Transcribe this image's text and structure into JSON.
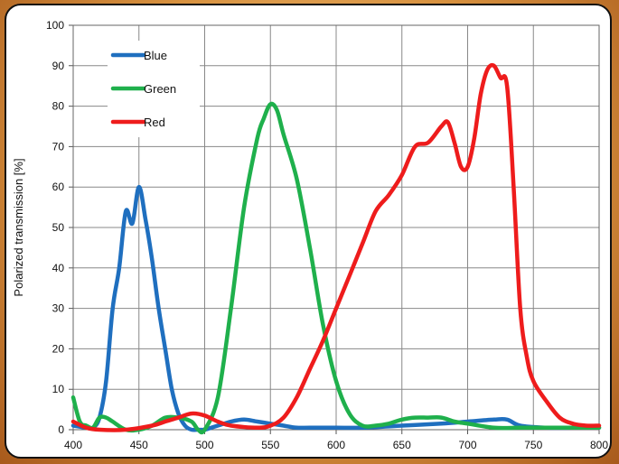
{
  "chart_data": {
    "type": "line",
    "xlabel": "",
    "ylabel": "Polarized transmission [%]",
    "xlim": [
      400,
      800
    ],
    "ylim": [
      0,
      100
    ],
    "xticks": [
      "400",
      "450",
      "500",
      "550",
      "600",
      "650",
      "700",
      "750",
      "800"
    ],
    "yticks": [
      "0",
      "10",
      "20",
      "30",
      "40",
      "50",
      "60",
      "70",
      "80",
      "90",
      "100"
    ],
    "grid": true,
    "legend_position": "top-left",
    "series": [
      {
        "name": "Blue",
        "color": "#1f6fbf",
        "x": [
          400,
          410,
          415,
          420,
          425,
          430,
          435,
          440,
          445,
          450,
          455,
          460,
          465,
          470,
          475,
          480,
          485,
          490,
          495,
          500,
          505,
          510,
          520,
          530,
          540,
          550,
          560,
          570,
          580,
          600,
          620,
          650,
          680,
          700,
          720,
          730,
          740,
          760,
          780,
          800
        ],
        "y": [
          1,
          0.5,
          0.5,
          3,
          12,
          30,
          40,
          54,
          51,
          60,
          52,
          42,
          30,
          20,
          10,
          4,
          1,
          0,
          0,
          0,
          0.5,
          1,
          2,
          2.5,
          2,
          1.5,
          1,
          0.5,
          0.5,
          0.5,
          0.5,
          1,
          1.5,
          2,
          2.5,
          2.5,
          1,
          0.5,
          0.5,
          0.5
        ]
      },
      {
        "name": "Green",
        "color": "#1fb04c",
        "x": [
          400,
          405,
          410,
          415,
          420,
          425,
          430,
          440,
          450,
          460,
          470,
          480,
          490,
          495,
          500,
          510,
          520,
          530,
          540,
          545,
          550,
          555,
          560,
          570,
          580,
          590,
          600,
          610,
          620,
          630,
          640,
          650,
          660,
          670,
          680,
          690,
          700,
          720,
          740,
          760,
          780,
          800
        ],
        "y": [
          8,
          2,
          1,
          0.5,
          3,
          3,
          2,
          0,
          0,
          1,
          3,
          3,
          2,
          0,
          0,
          8,
          30,
          55,
          72,
          77,
          80.5,
          79,
          73,
          62,
          45,
          26,
          12,
          4,
          1,
          1,
          1.5,
          2.5,
          3,
          3,
          3,
          2,
          1.5,
          0.5,
          0.5,
          0.5,
          0.5,
          0.5
        ]
      },
      {
        "name": "Red",
        "color": "#ee1c1c",
        "x": [
          400,
          410,
          420,
          440,
          460,
          470,
          480,
          490,
          500,
          510,
          520,
          540,
          550,
          560,
          570,
          580,
          590,
          600,
          610,
          620,
          630,
          640,
          650,
          660,
          670,
          680,
          685,
          690,
          695,
          700,
          705,
          710,
          715,
          720,
          725,
          730,
          735,
          740,
          745,
          750,
          760,
          770,
          780,
          790,
          800
        ],
        "y": [
          2,
          0.5,
          0,
          0,
          1,
          2,
          3,
          4,
          3.5,
          2,
          1,
          0.5,
          1,
          3,
          8,
          15,
          22,
          30,
          38,
          46,
          54,
          58,
          63,
          70,
          71,
          75,
          76,
          71,
          65,
          65,
          72,
          83,
          89,
          90,
          87,
          85,
          60,
          30,
          18,
          12,
          7,
          3,
          1.5,
          1,
          1
        ]
      }
    ]
  }
}
